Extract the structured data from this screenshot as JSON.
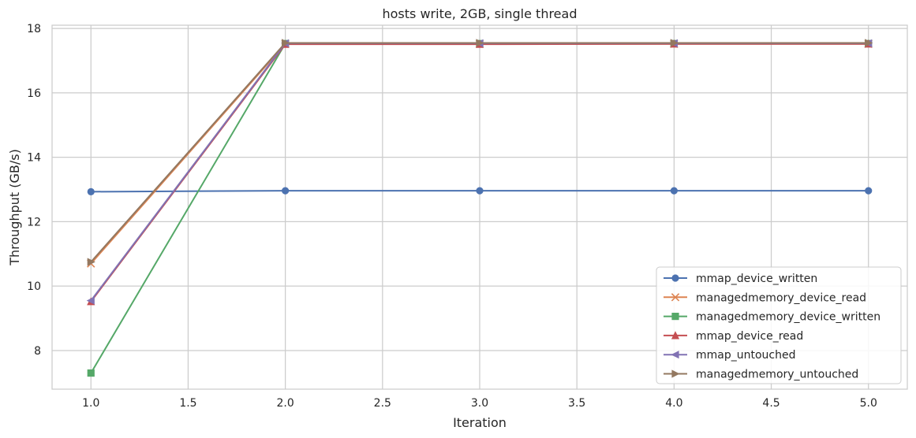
{
  "chart_data": {
    "type": "line",
    "title": "hosts write, 2GB, single thread",
    "xlabel": "Iteration",
    "ylabel": "Throughput (GB/s)",
    "xlim": [
      0.8,
      5.2
    ],
    "ylim": [
      6.8,
      18.1
    ],
    "xticks": [
      "1.0",
      "1.5",
      "2.0",
      "2.5",
      "3.0",
      "3.5",
      "4.0",
      "4.5",
      "5.0"
    ],
    "yticks": [
      "8",
      "10",
      "12",
      "14",
      "16",
      "18"
    ],
    "grid": true,
    "legend_position": "lower-right",
    "x": [
      1,
      2,
      3,
      4,
      5
    ],
    "series": [
      {
        "name": "mmap_device_written",
        "color": "#4c72b0",
        "marker": "circle",
        "values": [
          12.93,
          12.96,
          12.96,
          12.96,
          12.96
        ]
      },
      {
        "name": "managedmemory_device_read",
        "color": "#dd8452",
        "marker": "x",
        "values": [
          10.7,
          17.52,
          17.52,
          17.52,
          17.52
        ]
      },
      {
        "name": "managedmemory_device_written",
        "color": "#55a868",
        "marker": "square",
        "values": [
          7.3,
          17.53,
          17.53,
          17.53,
          17.53
        ]
      },
      {
        "name": "mmap_device_read",
        "color": "#c44e52",
        "marker": "triangle-up",
        "values": [
          9.52,
          17.51,
          17.51,
          17.52,
          17.52
        ]
      },
      {
        "name": "mmap_untouched",
        "color": "#8172b3",
        "marker": "triangle-left",
        "values": [
          9.55,
          17.54,
          17.54,
          17.54,
          17.54
        ]
      },
      {
        "name": "managedmemory_untouched",
        "color": "#937860",
        "marker": "triangle-right",
        "values": [
          10.75,
          17.55,
          17.55,
          17.55,
          17.55
        ]
      }
    ]
  }
}
